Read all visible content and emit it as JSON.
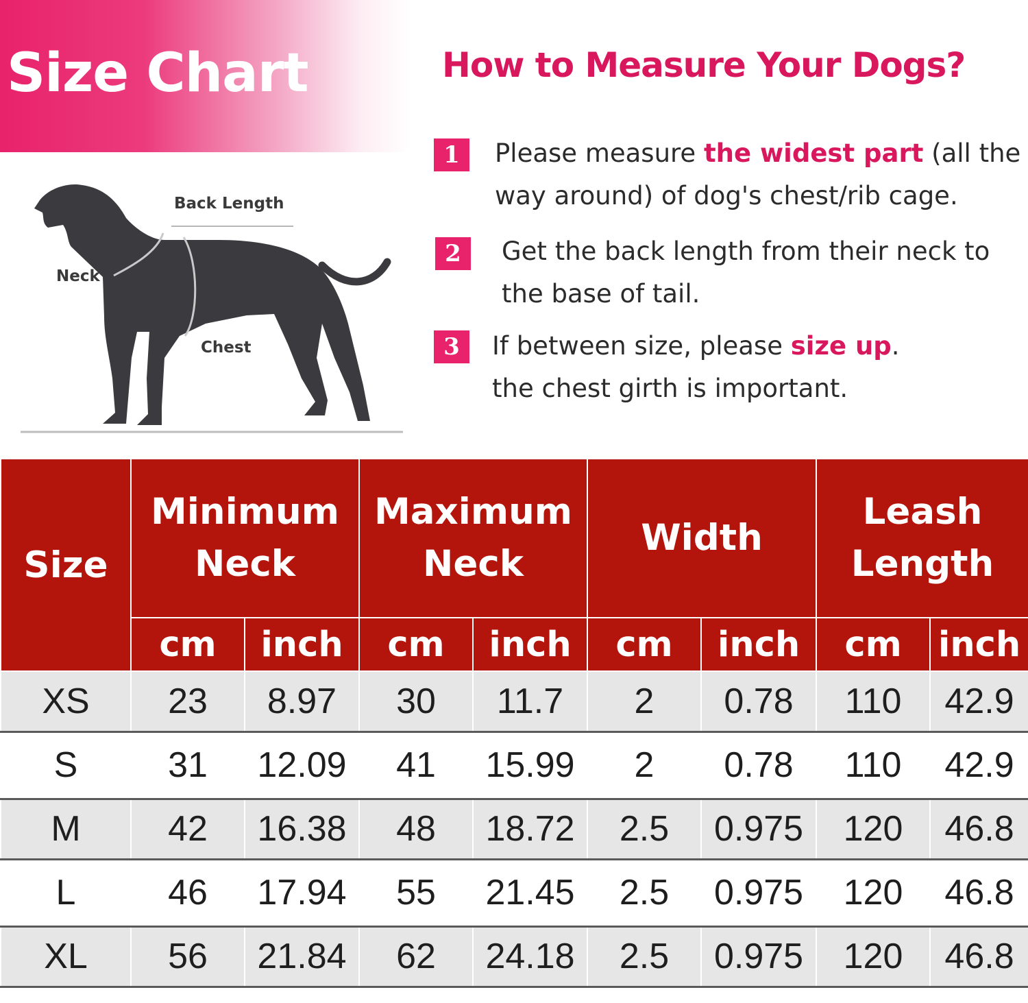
{
  "banner": {
    "title": "Size Chart"
  },
  "diagram": {
    "back_length_label": "Back Length",
    "neck_label": "Neck",
    "chest_label": "Chest"
  },
  "howto": {
    "title": "How to Measure Your Dogs?",
    "steps": [
      {
        "num": "1",
        "line1_pre": "Please measure ",
        "line1_hl": "the widest part",
        "line1_post": " (all the",
        "line2": "way around) of dog's chest/rib cage."
      },
      {
        "num": "2",
        "line1": "Get the back length from their neck to",
        "line2": "the base of tail."
      },
      {
        "num": "3",
        "line1_pre": "If between size, please ",
        "line1_hl": "size up",
        "line1_post": ".",
        "line2": "the chest girth is  important."
      }
    ]
  },
  "table": {
    "size_header": "Size",
    "groups": [
      {
        "line1": "Minimum",
        "line2": "Neck"
      },
      {
        "line1": "Maximum",
        "line2": "Neck"
      },
      {
        "line1": "Width",
        "line2": ""
      },
      {
        "line1": "Leash",
        "line2": "Length"
      }
    ],
    "units": [
      "cm",
      "inch",
      "cm",
      "inch",
      "cm",
      "inch",
      "cm",
      "inch"
    ],
    "rows": [
      [
        "XS",
        "23",
        "8.97",
        "30",
        "11.7",
        "2",
        "0.78",
        "110",
        "42.9"
      ],
      [
        "S",
        "31",
        "12.09",
        "41",
        "15.99",
        "2",
        "0.78",
        "110",
        "42.9"
      ],
      [
        "M",
        "42",
        "16.38",
        "48",
        "18.72",
        "2.5",
        "0.975",
        "120",
        "46.8"
      ],
      [
        "L",
        "46",
        "17.94",
        "55",
        "21.45",
        "2.5",
        "0.975",
        "120",
        "46.8"
      ],
      [
        "XL",
        "56",
        "21.84",
        "62",
        "24.18",
        "2.5",
        "0.975",
        "120",
        "46.8"
      ]
    ]
  },
  "colors": {
    "brand_pink": "#e8226b",
    "highlight_text": "#d8175c",
    "table_header": "#b3150d",
    "row_stripe": "#e6e6e6",
    "dog_silhouette": "#3b3a3f"
  }
}
